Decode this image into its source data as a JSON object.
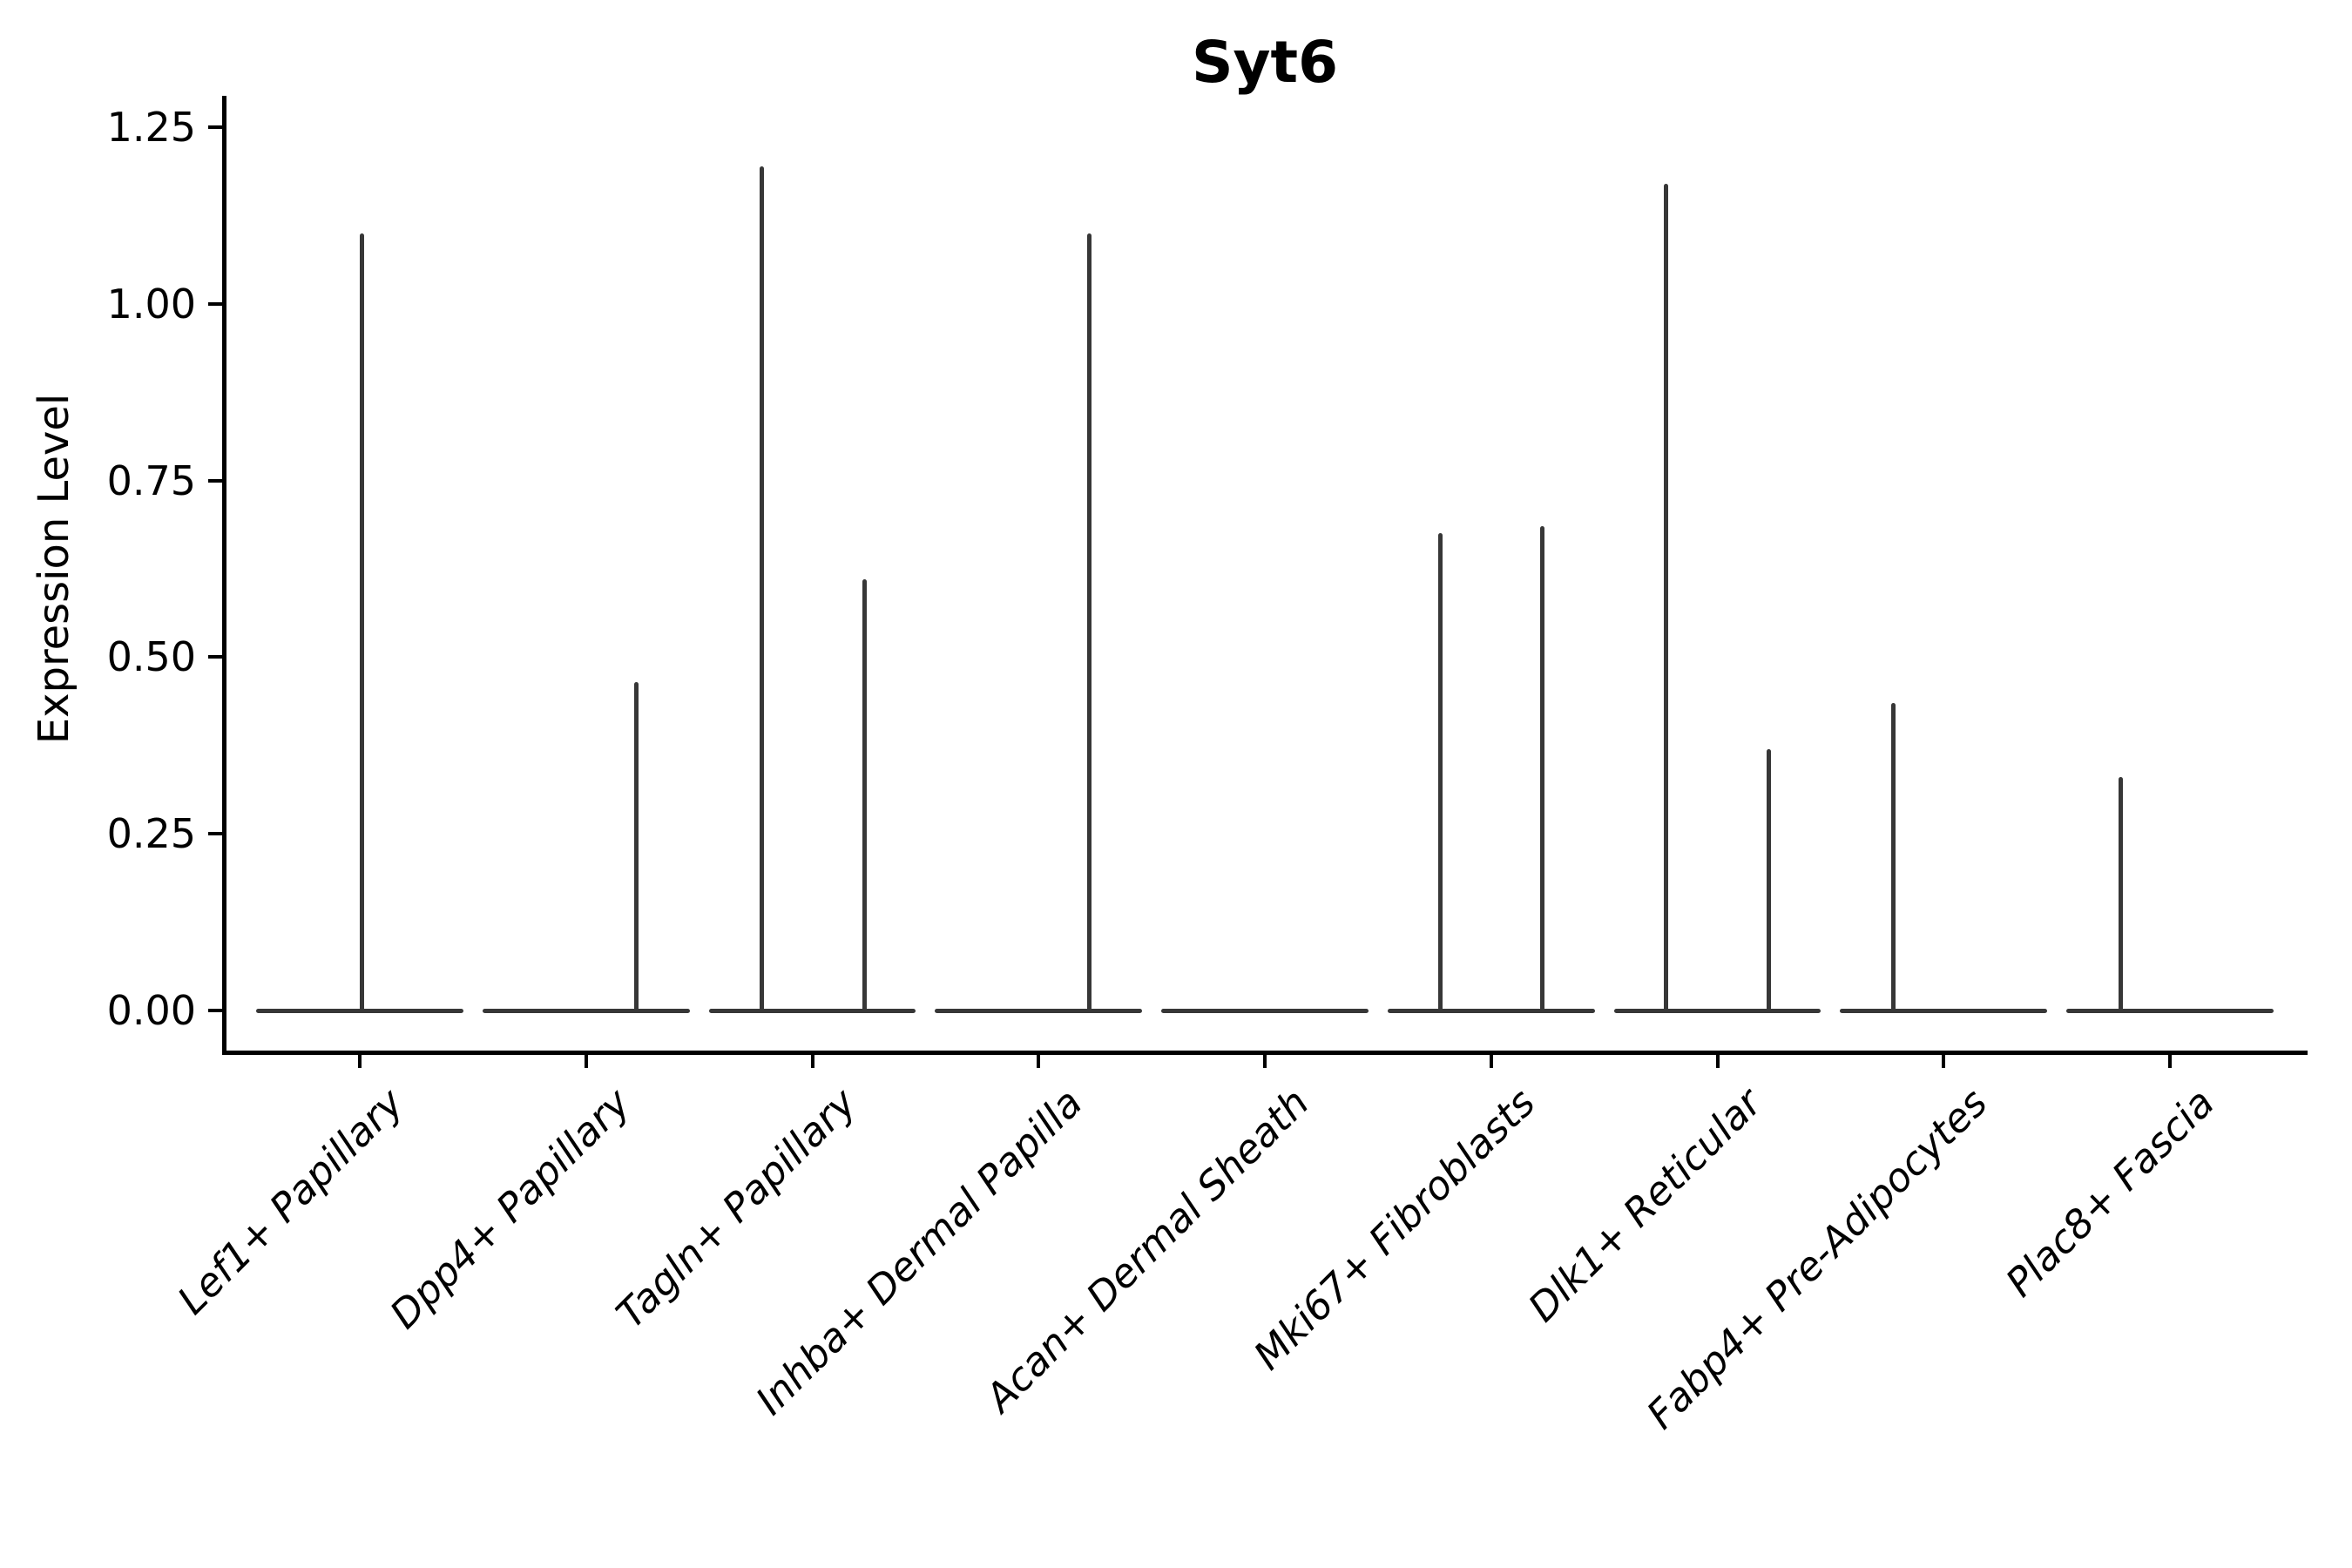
{
  "chart_data": {
    "type": "violin",
    "title": "Syt6",
    "ylabel": "Expression Level",
    "xlabel": "",
    "ylim": [
      0,
      1.25
    ],
    "yticks": [
      0.0,
      0.25,
      0.5,
      0.75,
      1.0,
      1.25
    ],
    "ytick_labels": [
      "0.00",
      "0.25",
      "0.50",
      "0.75",
      "1.00",
      "1.25"
    ],
    "categories": [
      "Lef1+ Papillary",
      "Dpp4+ Papillary",
      "Tagln+ Papillary",
      "Inhba+ Dermal Papilla",
      "Acan+ Dermal Sheath",
      "Mki67+ Fibroblasts",
      "Dlk1+ Reticular",
      "Fabp4+ Pre-Adipocytes",
      "Plac8+ Fascia"
    ],
    "legend": null,
    "grid": false,
    "violins": [
      {
        "category": "Lef1+ Papillary",
        "baseline_halfwidth": 0.458,
        "spikes": [
          {
            "offset": 0.01,
            "max": 1.1
          }
        ]
      },
      {
        "category": "Dpp4+ Papillary",
        "baseline_halfwidth": 0.458,
        "spikes": [
          {
            "offset": 0.223,
            "max": 0.465
          }
        ]
      },
      {
        "category": "Tagln+ Papillary",
        "baseline_halfwidth": 0.458,
        "spikes": [
          {
            "offset": -0.223,
            "max": 1.195
          },
          {
            "offset": 0.231,
            "max": 0.61
          }
        ]
      },
      {
        "category": "Inhba+ Dermal Papilla",
        "baseline_halfwidth": 0.458,
        "spikes": [
          {
            "offset": 0.223,
            "max": 1.1
          }
        ]
      },
      {
        "category": "Acan+ Dermal Sheath",
        "baseline_halfwidth": 0.458,
        "spikes": []
      },
      {
        "category": "Mki67+ Fibroblasts",
        "baseline_halfwidth": 0.458,
        "spikes": [
          {
            "offset": -0.223,
            "max": 0.675
          },
          {
            "offset": 0.227,
            "max": 0.685
          }
        ]
      },
      {
        "category": "Dlk1+ Reticular",
        "baseline_halfwidth": 0.458,
        "spikes": [
          {
            "offset": -0.227,
            "max": 1.17
          },
          {
            "offset": 0.227,
            "max": 0.37
          }
        ]
      },
      {
        "category": "Fabp4+ Pre-Adipocytes",
        "baseline_halfwidth": 0.458,
        "spikes": [
          {
            "offset": -0.223,
            "max": 0.435
          }
        ]
      },
      {
        "category": "Plac8+ Fascia",
        "baseline_halfwidth": 0.458,
        "spikes": [
          {
            "offset": -0.219,
            "max": 0.33
          }
        ]
      }
    ],
    "style": {
      "violin_color": "#373737",
      "axis_color": "#000000",
      "text_color": "#000000",
      "background": "#ffffff"
    }
  }
}
